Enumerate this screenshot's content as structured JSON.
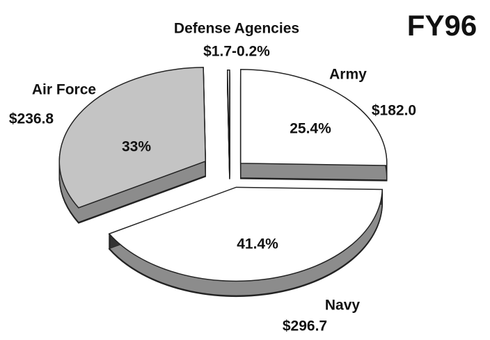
{
  "chart_data": {
    "type": "pie",
    "title": "FY96",
    "categories": [
      "Army",
      "Navy",
      "Air Force",
      "Defense Agencies"
    ],
    "values": [
      182.0,
      296.7,
      236.8,
      1.7
    ],
    "value_labels": [
      "$182.0",
      "$296.7",
      "$236.8",
      "$1.7-0.2%"
    ],
    "slice_labels": [
      "25.4%",
      "41.4%",
      "33%",
      null
    ],
    "colors": [
      "#ffffff",
      "#ffffff",
      "#c4c4c4",
      "#ffffff"
    ],
    "side_color": "#8c8c8c"
  }
}
